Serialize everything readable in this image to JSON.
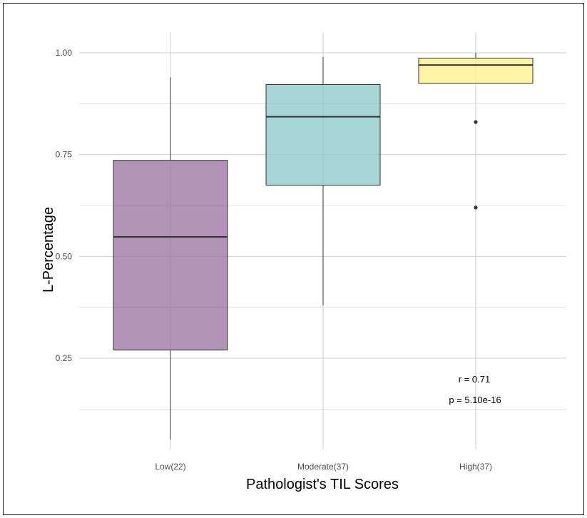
{
  "chart_data": {
    "type": "box",
    "xlabel": "Pathologist's TIL Scores",
    "ylabel": "L-Percentage",
    "ylim": [
      0.05,
      1.05
    ],
    "yticks": [
      {
        "value": 0.25,
        "label": "0.25"
      },
      {
        "value": 0.5,
        "label": "0.50"
      },
      {
        "value": 0.75,
        "label": "0.75"
      },
      {
        "value": 1.0,
        "label": "1.00"
      }
    ],
    "grid": true,
    "categories": [
      "Low(22)",
      "Moderate(37)",
      "High(37)"
    ],
    "boxes": [
      {
        "category": "Low(22)",
        "whisker_low": 0.05,
        "q1": 0.27,
        "median": 0.548,
        "q3": 0.736,
        "whisker_high": 0.94,
        "outliers": [],
        "color": "#9b76a0"
      },
      {
        "category": "Moderate(37)",
        "whisker_low": 0.38,
        "q1": 0.675,
        "median": 0.843,
        "q3": 0.922,
        "whisker_high": 0.99,
        "outliers": [],
        "color": "#8ec8c8"
      },
      {
        "category": "High(37)",
        "whisker_low": 0.925,
        "q1": 0.925,
        "median": 0.97,
        "q3": 0.987,
        "whisker_high": 1.0,
        "outliers": [
          0.83,
          0.62
        ],
        "color": "#fff08a"
      }
    ],
    "annotations": [
      "r = 0.71",
      "p = 5.10e-16"
    ]
  }
}
